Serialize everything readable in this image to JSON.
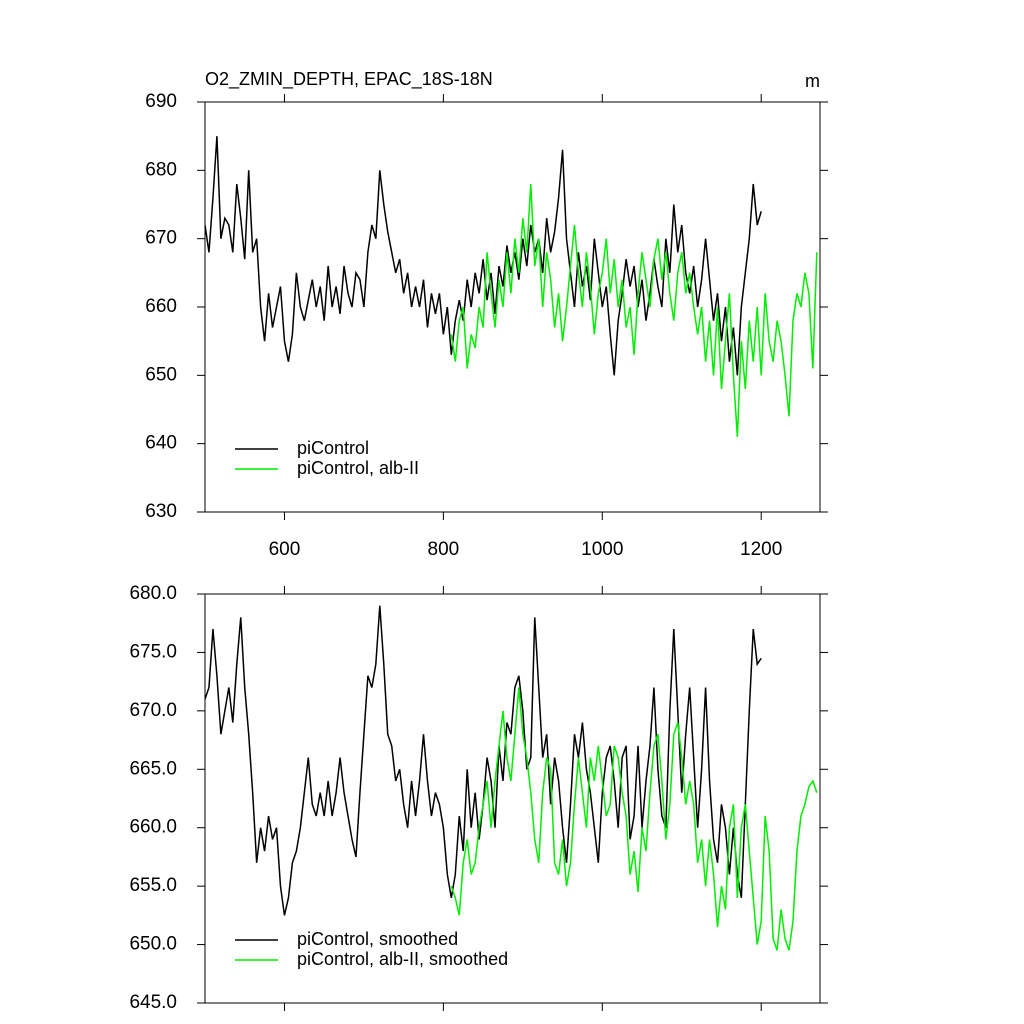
{
  "chart_data": [
    {
      "type": "line",
      "title": "O2_ZMIN_DEPTH, EPAC_18S-18N",
      "units": "m",
      "x": [
        500,
        505,
        510,
        515,
        520,
        525,
        530,
        535,
        540,
        545,
        550,
        555,
        560,
        565,
        570,
        575,
        580,
        585,
        590,
        595,
        600,
        605,
        610,
        615,
        620,
        625,
        630,
        635,
        640,
        645,
        650,
        655,
        660,
        665,
        670,
        675,
        680,
        685,
        690,
        695,
        700,
        705,
        710,
        715,
        720,
        725,
        730,
        735,
        740,
        745,
        750,
        755,
        760,
        765,
        770,
        775,
        780,
        785,
        790,
        795,
        800,
        805,
        810,
        815,
        820,
        825,
        830,
        835,
        840,
        845,
        850,
        855,
        860,
        865,
        870,
        875,
        880,
        885,
        890,
        895,
        900,
        905,
        910,
        915,
        920,
        925,
        930,
        935,
        940,
        945,
        950,
        955,
        960,
        965,
        970,
        975,
        980,
        985,
        990,
        995,
        1000,
        1005,
        1010,
        1015,
        1020,
        1025,
        1030,
        1035,
        1040,
        1045,
        1050,
        1055,
        1060,
        1065,
        1070,
        1075,
        1080,
        1085,
        1090,
        1095,
        1100,
        1105,
        1110,
        1115,
        1120,
        1125,
        1130,
        1135,
        1140,
        1145,
        1150,
        1155,
        1160,
        1165,
        1170,
        1175,
        1180,
        1185,
        1190,
        1195,
        1200,
        1205,
        1210,
        1215,
        1220,
        1225,
        1230,
        1235,
        1240,
        1245,
        1250,
        1255,
        1260,
        1265,
        1270
      ],
      "series": [
        {
          "name": "piControl",
          "color": "#000000",
          "values": [
            672,
            668,
            676,
            685,
            670,
            673,
            672,
            668,
            678,
            673,
            667,
            680,
            668,
            670,
            660,
            655,
            662,
            657,
            660,
            663,
            655,
            652,
            656,
            665,
            660,
            658,
            661,
            664,
            660,
            663,
            658,
            666,
            660,
            663,
            659,
            666,
            662,
            660,
            665,
            664,
            660,
            668,
            672,
            670,
            680,
            675,
            671,
            668,
            665,
            667,
            662,
            665,
            660,
            663,
            660,
            664,
            657,
            662,
            659,
            662,
            656,
            660,
            653,
            658,
            661,
            658,
            664,
            660,
            665,
            662,
            667,
            661,
            665,
            659,
            666,
            663,
            669,
            665,
            668,
            664,
            670,
            666,
            672,
            668,
            670,
            665,
            673,
            668,
            671,
            676,
            683,
            670,
            665,
            660,
            668,
            663,
            666,
            661,
            670,
            665,
            660,
            663,
            656,
            650,
            658,
            662,
            667,
            663,
            666,
            660,
            664,
            658,
            662,
            667,
            663,
            660,
            670,
            665,
            675,
            668,
            672,
            665,
            662,
            666,
            660,
            664,
            670,
            664,
            658,
            662,
            655,
            660,
            652,
            657,
            650,
            660,
            665,
            670,
            678,
            672,
            674,
            null,
            null,
            null,
            null,
            null,
            null,
            null,
            null,
            null,
            null,
            null,
            null,
            null,
            null
          ]
        },
        {
          "name": "piControl, alb-II",
          "color": "#00ee00",
          "values": [
            null,
            null,
            null,
            null,
            null,
            null,
            null,
            null,
            null,
            null,
            null,
            null,
            null,
            null,
            null,
            null,
            null,
            null,
            null,
            null,
            null,
            null,
            null,
            null,
            null,
            null,
            null,
            null,
            null,
            null,
            null,
            null,
            null,
            null,
            null,
            null,
            null,
            null,
            null,
            null,
            null,
            null,
            null,
            null,
            null,
            null,
            null,
            null,
            null,
            null,
            null,
            null,
            null,
            null,
            null,
            null,
            null,
            null,
            null,
            null,
            null,
            null,
            656,
            652,
            658,
            660,
            651,
            656,
            654,
            660,
            657,
            668,
            662,
            657,
            664,
            660,
            668,
            662,
            670,
            665,
            673,
            668,
            678,
            666,
            670,
            660,
            668,
            664,
            657,
            662,
            655,
            660,
            666,
            672,
            665,
            660,
            668,
            663,
            656,
            662,
            665,
            670,
            662,
            667,
            660,
            664,
            657,
            660,
            653,
            662,
            668,
            664,
            660,
            667,
            670,
            664,
            668,
            662,
            658,
            665,
            668,
            662,
            665,
            660,
            656,
            660,
            652,
            658,
            650,
            660,
            648,
            655,
            662,
            650,
            641,
            655,
            648,
            658,
            652,
            660,
            650,
            662,
            655,
            652,
            658,
            655,
            650,
            644,
            658,
            662,
            660,
            665,
            662,
            651,
            668
          ]
        }
      ],
      "xlim": [
        500,
        1274
      ],
      "xticks": [
        600,
        800,
        1000,
        1200
      ],
      "show_xticklabels": true,
      "ylim": [
        630,
        690
      ],
      "yticks": [
        630,
        640,
        650,
        660,
        670,
        680,
        690
      ],
      "legend": "lower left"
    },
    {
      "type": "line",
      "x": [
        500,
        505,
        510,
        515,
        520,
        525,
        530,
        535,
        540,
        545,
        550,
        555,
        560,
        565,
        570,
        575,
        580,
        585,
        590,
        595,
        600,
        605,
        610,
        615,
        620,
        625,
        630,
        635,
        640,
        645,
        650,
        655,
        660,
        665,
        670,
        675,
        680,
        685,
        690,
        695,
        700,
        705,
        710,
        715,
        720,
        725,
        730,
        735,
        740,
        745,
        750,
        755,
        760,
        765,
        770,
        775,
        780,
        785,
        790,
        795,
        800,
        805,
        810,
        815,
        820,
        825,
        830,
        835,
        840,
        845,
        850,
        855,
        860,
        865,
        870,
        875,
        880,
        885,
        890,
        895,
        900,
        905,
        910,
        915,
        920,
        925,
        930,
        935,
        940,
        945,
        950,
        955,
        960,
        965,
        970,
        975,
        980,
        985,
        990,
        995,
        1000,
        1005,
        1010,
        1015,
        1020,
        1025,
        1030,
        1035,
        1040,
        1045,
        1050,
        1055,
        1060,
        1065,
        1070,
        1075,
        1080,
        1085,
        1090,
        1095,
        1100,
        1105,
        1110,
        1115,
        1120,
        1125,
        1130,
        1135,
        1140,
        1145,
        1150,
        1155,
        1160,
        1165,
        1170,
        1175,
        1180,
        1185,
        1190,
        1195,
        1200,
        1205,
        1210,
        1215,
        1220,
        1225,
        1230,
        1235,
        1240,
        1245,
        1250,
        1255,
        1260,
        1265,
        1270
      ],
      "series": [
        {
          "name": "piControl, smoothed",
          "color": "#000000",
          "values": [
            671,
            672,
            677,
            673,
            668,
            670,
            672,
            669,
            674,
            678,
            672,
            668,
            663,
            657,
            660,
            658,
            661,
            659,
            660,
            655,
            652.5,
            654,
            657,
            658,
            660,
            663,
            666,
            662,
            661,
            663,
            661,
            664,
            661,
            663,
            666,
            663,
            661,
            659,
            657.5,
            663,
            668,
            673,
            672,
            674,
            679,
            674,
            668,
            667,
            664,
            665,
            662,
            660,
            664,
            661,
            664,
            668,
            664,
            661,
            663,
            662,
            660,
            656,
            654,
            656,
            661,
            658,
            665,
            660,
            663,
            659,
            662,
            666,
            664,
            660,
            667,
            664,
            669,
            668,
            672,
            673,
            670,
            665,
            666,
            678,
            672,
            666,
            668,
            662,
            666,
            664,
            660,
            657,
            662,
            668,
            666,
            669,
            665,
            663,
            660,
            657,
            663,
            666,
            667,
            664,
            660,
            666,
            667,
            659,
            661,
            667,
            660,
            664,
            667,
            672,
            665,
            661,
            660,
            670,
            677,
            670,
            663,
            668,
            672,
            666,
            660,
            665,
            672,
            664,
            659,
            657,
            662,
            660,
            656,
            660,
            656,
            654,
            662,
            670,
            677,
            674,
            674.5,
            null,
            null,
            null,
            null,
            null,
            null,
            null,
            null,
            null,
            null,
            null,
            null,
            null,
            null
          ]
        },
        {
          "name": "piControl, alb-II, smoothed",
          "color": "#00ee00",
          "values": [
            null,
            null,
            null,
            null,
            null,
            null,
            null,
            null,
            null,
            null,
            null,
            null,
            null,
            null,
            null,
            null,
            null,
            null,
            null,
            null,
            null,
            null,
            null,
            null,
            null,
            null,
            null,
            null,
            null,
            null,
            null,
            null,
            null,
            null,
            null,
            null,
            null,
            null,
            null,
            null,
            null,
            null,
            null,
            null,
            null,
            null,
            null,
            null,
            null,
            null,
            null,
            null,
            null,
            null,
            null,
            null,
            null,
            null,
            null,
            null,
            null,
            null,
            655,
            654,
            652.5,
            657,
            659,
            656,
            657,
            660,
            662,
            664,
            660,
            664,
            667,
            670,
            666,
            664,
            668,
            672,
            668,
            666,
            663,
            659,
            657,
            663,
            666,
            665,
            657,
            656,
            659,
            655,
            657,
            662,
            666,
            663,
            660,
            666,
            664,
            667,
            664,
            661,
            662,
            667,
            666,
            663,
            661,
            656,
            658,
            654.5,
            660,
            658,
            663,
            667,
            668,
            664,
            659,
            662,
            668,
            669,
            666,
            662,
            664,
            662,
            657,
            659,
            655,
            659,
            656,
            651.5,
            655,
            653,
            660,
            662,
            654,
            660,
            662,
            658,
            654,
            650,
            652,
            661,
            658,
            650.5,
            649.5,
            653,
            650.5,
            649.5,
            652,
            658,
            661,
            662,
            663.5,
            664,
            663
          ]
        }
      ],
      "xlim": [
        500,
        1274
      ],
      "xticks": [
        600,
        800,
        1000,
        1200
      ],
      "show_xticklabels": false,
      "ylim": [
        645,
        680
      ],
      "yticks": [
        {
          "value": 645,
          "label": "645.0"
        },
        {
          "value": 650,
          "label": "650.0"
        },
        {
          "value": 655,
          "label": "655.0"
        },
        {
          "value": 660,
          "label": "660.0"
        },
        {
          "value": 665,
          "label": "665.0"
        },
        {
          "value": 670,
          "label": "670.0"
        },
        {
          "value": 675,
          "label": "675.0"
        },
        {
          "value": 680,
          "label": "680.0"
        }
      ],
      "legend": "lower left"
    }
  ]
}
